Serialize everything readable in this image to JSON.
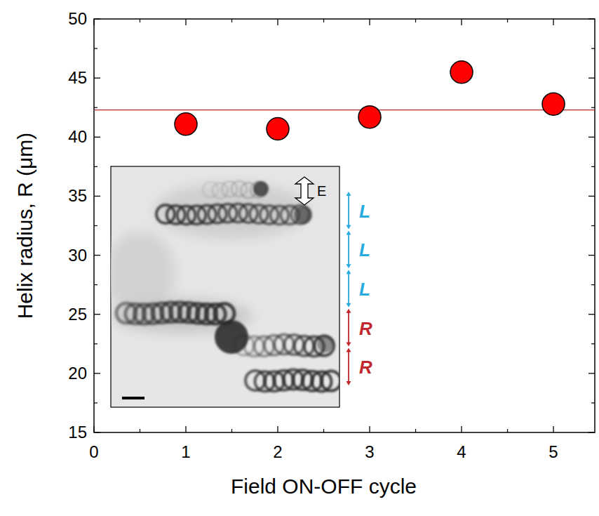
{
  "chart_data": {
    "type": "scatter",
    "x_label": "Field ON-OFF cycle",
    "y_label": "Helix radius, R (μm)",
    "x": [
      1,
      2,
      3,
      4,
      5
    ],
    "values": [
      41.1,
      40.7,
      41.7,
      45.5,
      42.8
    ],
    "color": "#ff0000",
    "marker": "circle",
    "xlim": [
      0,
      5.45
    ],
    "xticks": [
      0,
      1,
      2,
      3,
      4,
      5
    ],
    "ylim": [
      15,
      50
    ],
    "yticks": [
      15,
      20,
      25,
      30,
      35,
      40,
      45,
      50
    ],
    "mean_line": 42.3,
    "inset": {
      "field_label": "E",
      "segments": [
        {
          "label": "L",
          "color": "#29abe2"
        },
        {
          "label": "L",
          "color": "#29abe2"
        },
        {
          "label": "L",
          "color": "#29abe2"
        },
        {
          "label": "R",
          "color": "#c1272d"
        },
        {
          "label": "R",
          "color": "#c1272d"
        }
      ]
    }
  }
}
